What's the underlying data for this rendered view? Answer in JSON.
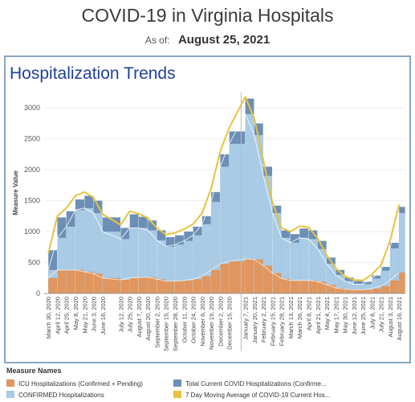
{
  "header": {
    "title": "COVID-19 in Virginia Hospitals",
    "as_of_label": "As of:",
    "as_of_date": "August 25, 2021"
  },
  "section_title": "Hospitalization Trends",
  "legend": {
    "title": "Measure Names",
    "items": [
      {
        "label": "ICU Hospitalizations (Confirmed + Pending)",
        "color": "#e0965e"
      },
      {
        "label": "Total Current COVID Hospitalizations (Confirme...",
        "color": "#6d8fb5"
      },
      {
        "label": "CONFIRMED Hospitalizations",
        "color": "#a9cbe5"
      },
      {
        "label": "7 Day Moving Average of COVID-19 Current Hos...",
        "color": "#e8c23f"
      }
    ]
  },
  "chart_data": {
    "type": "bar",
    "ylabel": "Measure Value",
    "ylim": [
      0,
      3250
    ],
    "y_ticks": [
      0,
      500,
      1000,
      1500,
      2000,
      2500,
      3000
    ],
    "x_tick_labels": [
      "March 30, 2020",
      "April 12, 2020",
      "April 25, 2020",
      "May 8, 2020",
      "May 21, 2020",
      "June 3, 2020",
      "June 16, 2020",
      "July 12, 2020",
      "July 25, 2020",
      "August 7, 2020",
      "August 20, 2020",
      "September 2, 2020",
      "September 15, 2020",
      "September 28, 2020",
      "October 11, 2020",
      "October 24, 2020",
      "November 6, 2020",
      "November 19, 2020",
      "December 2, 2020",
      "December 15, 2020",
      "January 7, 2021",
      "January 20, 2021",
      "February 2, 2021",
      "February 15, 2021",
      "February 28, 2021",
      "March 13, 2021",
      "March 26, 2021",
      "April 8, 2021",
      "April 21, 2021",
      "May 4, 2021",
      "May 17, 2021",
      "May 30, 2021",
      "June 12, 2021",
      "June 25, 2021",
      "July 8, 2021",
      "July 21, 2021",
      "August 3, 2021",
      "August 16, 2021"
    ],
    "x_dates": [
      "2020-03-30",
      "2020-04-12",
      "2020-04-25",
      "2020-05-08",
      "2020-05-21",
      "2020-06-03",
      "2020-06-16",
      "2020-07-12",
      "2020-07-25",
      "2020-08-07",
      "2020-08-20",
      "2020-09-02",
      "2020-09-15",
      "2020-09-28",
      "2020-10-11",
      "2020-10-24",
      "2020-11-06",
      "2020-11-19",
      "2020-12-02",
      "2020-12-15",
      "2021-01-07",
      "2021-01-20",
      "2021-02-02",
      "2021-02-15",
      "2021-02-28",
      "2021-03-13",
      "2021-03-26",
      "2021-04-08",
      "2021-04-21",
      "2021-05-04",
      "2021-05-17",
      "2021-05-30",
      "2021-06-12",
      "2021-06-25",
      "2021-07-08",
      "2021-07-21",
      "2021-08-03",
      "2021-08-16"
    ],
    "x_range": [
      "2020-03-24",
      "2021-08-25"
    ],
    "series": [
      {
        "name": "Total Current COVID Hospitalizations (Confirme...",
        "values": [
          700,
          1230,
          1330,
          1520,
          1580,
          1500,
          1230,
          1060,
          1280,
          1240,
          1180,
          1020,
          910,
          940,
          1000,
          1080,
          1250,
          1640,
          2250,
          2620,
          3150,
          2750,
          2050,
          1420,
          1020,
          960,
          1050,
          1020,
          850,
          580,
          380,
          260,
          200,
          190,
          290,
          430,
          820,
          1400
        ]
      },
      {
        "name": "CONFIRMED Hospitalizations",
        "values": [
          380,
          900,
          1080,
          1350,
          1380,
          1300,
          1000,
          880,
          1060,
          1060,
          1020,
          860,
          760,
          790,
          850,
          940,
          1120,
          1480,
          2050,
          2420,
          2900,
          2560,
          1900,
          1300,
          900,
          820,
          900,
          880,
          720,
          480,
          300,
          200,
          150,
          150,
          240,
          370,
          730,
          1300
        ]
      },
      {
        "name": "ICU Hospitalizations (Confirmed + Pending)",
        "values": [
          250,
          380,
          380,
          380,
          350,
          320,
          250,
          220,
          250,
          260,
          260,
          230,
          200,
          200,
          210,
          230,
          280,
          380,
          480,
          520,
          560,
          550,
          450,
          330,
          240,
          210,
          210,
          210,
          190,
          140,
          90,
          70,
          60,
          60,
          80,
          120,
          210,
          340
        ]
      },
      {
        "name": "7 Day Moving Average of COVID-19 Current Hos...",
        "values": [
          650,
          1250,
          1380,
          1580,
          1640,
          1550,
          1280,
          1110,
          1330,
          1290,
          1220,
          1060,
          950,
          980,
          1040,
          1120,
          1300,
          1700,
          2300,
          2680,
          3180,
          2830,
          2150,
          1480,
          1060,
          1000,
          1090,
          1070,
          890,
          620,
          410,
          280,
          220,
          210,
          310,
          460,
          850,
          1440
        ]
      }
    ]
  }
}
